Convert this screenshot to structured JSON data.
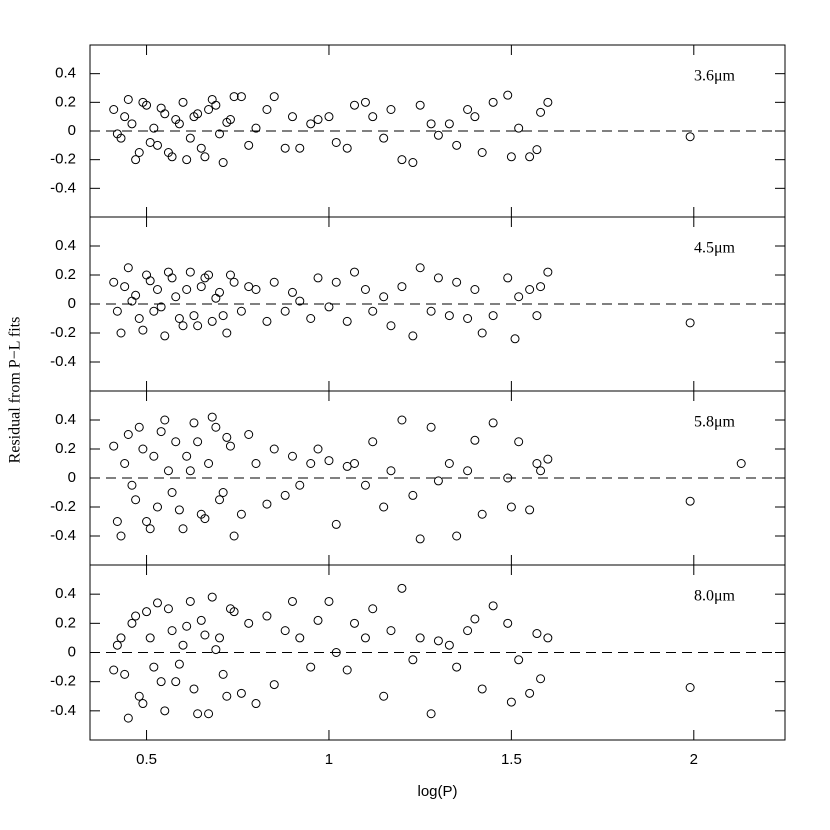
{
  "ylabel": "Residual from P−L fits",
  "chart_data": [
    {
      "type": "scatter",
      "label": "3.6μm",
      "xlim": [
        0.345,
        2.25
      ],
      "ylim": [
        -0.6,
        0.6
      ],
      "yticks": [
        -0.4,
        -0.2,
        0,
        0.2,
        0.4
      ],
      "hline": 0,
      "color": "#000000",
      "x": [
        0.41,
        0.43,
        0.45,
        0.46,
        0.48,
        0.5,
        0.52,
        0.53,
        0.55,
        0.57,
        0.58,
        0.6,
        0.62,
        0.63,
        0.65,
        0.67,
        0.68,
        0.7,
        0.72,
        0.74,
        0.42,
        0.44,
        0.47,
        0.49,
        0.51,
        0.54,
        0.56,
        0.59,
        0.61,
        0.64,
        0.66,
        0.69,
        0.71,
        0.73,
        0.76,
        0.78,
        0.8,
        0.83,
        0.85,
        0.88,
        0.9,
        0.92,
        0.95,
        0.97,
        1.0,
        1.02,
        1.05,
        1.07,
        1.1,
        1.12,
        1.15,
        1.17,
        1.2,
        1.23,
        1.25,
        1.28,
        1.3,
        1.33,
        1.35,
        1.38,
        1.4,
        1.42,
        1.45,
        1.49,
        1.5,
        1.52,
        1.55,
        1.57,
        1.58,
        1.6,
        1.99
      ],
      "values": [
        0.15,
        -0.05,
        0.22,
        0.05,
        -0.15,
        0.18,
        0.02,
        -0.1,
        0.12,
        -0.18,
        0.08,
        0.2,
        -0.05,
        0.1,
        -0.12,
        0.15,
        0.22,
        -0.02,
        0.06,
        0.24,
        -0.02,
        0.1,
        -0.2,
        0.2,
        -0.08,
        0.16,
        -0.15,
        0.05,
        -0.2,
        0.12,
        -0.18,
        0.18,
        -0.22,
        0.08,
        0.24,
        -0.1,
        0.02,
        0.15,
        0.24,
        -0.12,
        0.1,
        -0.12,
        0.05,
        0.08,
        0.1,
        -0.08,
        -0.12,
        0.18,
        0.2,
        0.1,
        -0.05,
        0.15,
        -0.2,
        -0.22,
        0.18,
        0.05,
        -0.03,
        0.05,
        -0.1,
        0.15,
        0.1,
        -0.15,
        0.2,
        0.25,
        -0.18,
        0.02,
        -0.18,
        -0.13,
        0.13,
        0.2,
        -0.04
      ]
    },
    {
      "type": "scatter",
      "label": "4.5μm",
      "xlim": [
        0.345,
        2.25
      ],
      "ylim": [
        -0.6,
        0.6
      ],
      "yticks": [
        -0.4,
        -0.2,
        0,
        0.2,
        0.4
      ],
      "hline": 0,
      "color": "#000000",
      "x": [
        0.41,
        0.43,
        0.45,
        0.46,
        0.48,
        0.5,
        0.52,
        0.53,
        0.55,
        0.57,
        0.58,
        0.6,
        0.62,
        0.63,
        0.65,
        0.67,
        0.68,
        0.7,
        0.72,
        0.74,
        0.42,
        0.44,
        0.47,
        0.49,
        0.51,
        0.54,
        0.56,
        0.59,
        0.61,
        0.64,
        0.66,
        0.69,
        0.71,
        0.73,
        0.76,
        0.78,
        0.8,
        0.83,
        0.85,
        0.88,
        0.9,
        0.92,
        0.95,
        0.97,
        1.0,
        1.02,
        1.05,
        1.07,
        1.1,
        1.12,
        1.15,
        1.17,
        1.2,
        1.23,
        1.25,
        1.28,
        1.3,
        1.33,
        1.35,
        1.38,
        1.4,
        1.42,
        1.45,
        1.49,
        1.51,
        1.52,
        1.55,
        1.57,
        1.58,
        1.6,
        1.99
      ],
      "values": [
        0.15,
        -0.2,
        0.25,
        0.02,
        -0.1,
        0.2,
        -0.05,
        0.1,
        -0.22,
        0.18,
        0.05,
        -0.15,
        0.22,
        -0.08,
        0.12,
        0.2,
        -0.12,
        0.08,
        -0.2,
        0.15,
        -0.05,
        0.12,
        0.06,
        -0.18,
        0.16,
        -0.02,
        0.22,
        -0.1,
        0.1,
        -0.15,
        0.18,
        0.04,
        -0.08,
        0.2,
        -0.05,
        0.12,
        0.1,
        -0.12,
        0.15,
        -0.05,
        0.08,
        0.02,
        -0.1,
        0.18,
        -0.02,
        0.15,
        -0.12,
        0.22,
        0.1,
        -0.05,
        0.05,
        -0.15,
        0.12,
        -0.22,
        0.25,
        -0.05,
        0.18,
        -0.08,
        0.15,
        -0.1,
        0.1,
        -0.2,
        -0.08,
        0.18,
        -0.24,
        0.05,
        0.1,
        -0.08,
        0.12,
        0.22,
        -0.13
      ]
    },
    {
      "type": "scatter",
      "label": "5.8μm",
      "xlim": [
        0.345,
        2.25
      ],
      "ylim": [
        -0.6,
        0.6
      ],
      "yticks": [
        -0.4,
        -0.2,
        0,
        0.2,
        0.4
      ],
      "hline": 0,
      "color": "#000000",
      "x": [
        0.41,
        0.43,
        0.45,
        0.46,
        0.48,
        0.5,
        0.52,
        0.53,
        0.55,
        0.57,
        0.58,
        0.6,
        0.62,
        0.63,
        0.65,
        0.67,
        0.68,
        0.7,
        0.72,
        0.74,
        0.42,
        0.44,
        0.47,
        0.49,
        0.51,
        0.54,
        0.56,
        0.59,
        0.61,
        0.64,
        0.66,
        0.69,
        0.71,
        0.73,
        0.76,
        0.78,
        0.8,
        0.83,
        0.85,
        0.88,
        0.9,
        0.92,
        0.95,
        0.97,
        1.0,
        1.02,
        1.05,
        1.07,
        1.1,
        1.12,
        1.15,
        1.17,
        1.2,
        1.23,
        1.25,
        1.28,
        1.3,
        1.33,
        1.35,
        1.38,
        1.4,
        1.42,
        1.45,
        1.49,
        1.5,
        1.52,
        1.55,
        1.57,
        1.58,
        1.6,
        1.99,
        2.13
      ],
      "values": [
        0.22,
        -0.4,
        0.3,
        -0.05,
        0.35,
        -0.3,
        0.15,
        -0.2,
        0.4,
        -0.1,
        0.25,
        -0.35,
        0.05,
        0.38,
        -0.25,
        0.1,
        0.42,
        -0.15,
        0.28,
        -0.4,
        -0.3,
        0.1,
        -0.15,
        0.2,
        -0.35,
        0.32,
        0.05,
        -0.22,
        0.15,
        0.25,
        -0.28,
        0.35,
        -0.1,
        0.22,
        -0.25,
        0.3,
        0.1,
        -0.18,
        0.2,
        -0.12,
        0.15,
        -0.05,
        0.1,
        0.2,
        0.12,
        -0.32,
        0.08,
        0.1,
        -0.05,
        0.25,
        -0.2,
        0.05,
        0.4,
        -0.12,
        -0.42,
        0.35,
        -0.02,
        0.1,
        -0.4,
        0.05,
        0.26,
        -0.25,
        0.38,
        0.0,
        -0.2,
        0.25,
        -0.22,
        0.1,
        0.05,
        0.13,
        -0.16,
        0.1
      ]
    },
    {
      "type": "scatter",
      "label": "8.0μm",
      "xlabel": "log(P)",
      "xlim": [
        0.345,
        2.25
      ],
      "ylim": [
        -0.6,
        0.6
      ],
      "xticks": [
        0.5,
        1,
        1.5,
        2
      ],
      "yticks": [
        -0.4,
        -0.2,
        0,
        0.2,
        0.4
      ],
      "hline": 0,
      "color": "#000000",
      "x": [
        0.41,
        0.43,
        0.45,
        0.46,
        0.48,
        0.5,
        0.52,
        0.53,
        0.55,
        0.57,
        0.58,
        0.6,
        0.62,
        0.63,
        0.65,
        0.67,
        0.68,
        0.7,
        0.72,
        0.74,
        0.42,
        0.44,
        0.47,
        0.49,
        0.51,
        0.54,
        0.56,
        0.59,
        0.61,
        0.64,
        0.66,
        0.69,
        0.71,
        0.73,
        0.76,
        0.78,
        0.8,
        0.83,
        0.85,
        0.88,
        0.9,
        0.92,
        0.95,
        0.97,
        1.0,
        1.02,
        1.05,
        1.07,
        1.1,
        1.12,
        1.15,
        1.17,
        1.2,
        1.23,
        1.25,
        1.28,
        1.3,
        1.33,
        1.35,
        1.38,
        1.4,
        1.42,
        1.45,
        1.49,
        1.5,
        1.52,
        1.55,
        1.57,
        1.58,
        1.6,
        1.99
      ],
      "values": [
        -0.12,
        0.1,
        -0.45,
        0.2,
        -0.3,
        0.28,
        -0.1,
        0.34,
        -0.4,
        0.15,
        -0.2,
        0.05,
        0.35,
        -0.25,
        0.22,
        -0.42,
        0.38,
        0.1,
        -0.3,
        0.28,
        0.05,
        -0.15,
        0.25,
        -0.35,
        0.1,
        -0.2,
        0.3,
        -0.08,
        0.18,
        -0.42,
        0.12,
        0.02,
        -0.15,
        0.3,
        -0.28,
        0.2,
        -0.35,
        0.25,
        -0.22,
        0.15,
        0.35,
        0.1,
        -0.1,
        0.22,
        0.35,
        0.0,
        -0.12,
        0.2,
        0.1,
        0.3,
        -0.3,
        0.15,
        0.44,
        -0.05,
        0.1,
        -0.42,
        0.08,
        0.05,
        -0.1,
        0.15,
        0.23,
        -0.25,
        0.32,
        0.2,
        -0.34,
        -0.05,
        -0.28,
        0.13,
        -0.18,
        0.1,
        -0.24
      ]
    }
  ]
}
